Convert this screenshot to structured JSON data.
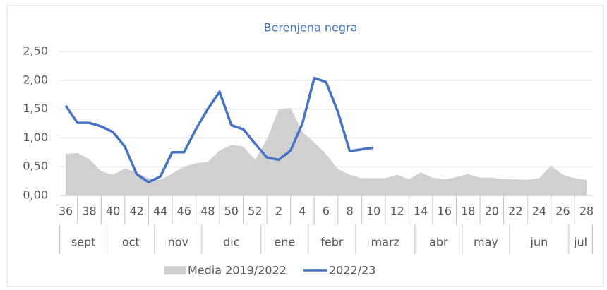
{
  "chart_data": {
    "type": "line",
    "title": "Berenjena negra",
    "categories": [
      "36",
      null,
      "38",
      null,
      "40",
      null,
      "42",
      null,
      "44",
      null,
      "46",
      null,
      "48",
      null,
      "50",
      null,
      "52",
      null,
      "2",
      null,
      "4",
      null,
      "6",
      null,
      "8",
      null,
      "10",
      null,
      "12",
      null,
      "14",
      null,
      "16",
      null,
      "18",
      null,
      "20",
      null,
      "22",
      null,
      "24",
      null,
      "26",
      null,
      "28"
    ],
    "months": [
      "sept",
      "oct",
      "nov",
      "dic",
      "ene",
      "febr",
      "marz",
      "abr",
      "may",
      "jun",
      "jul"
    ],
    "series": [
      {
        "name": "Media 2019/2022",
        "type": "area",
        "color": "#d0d0d0",
        "values": [
          0.72,
          0.74,
          0.63,
          0.42,
          0.36,
          0.47,
          0.4,
          0.3,
          0.27,
          0.38,
          0.5,
          0.56,
          0.58,
          0.78,
          0.88,
          0.85,
          0.62,
          0.97,
          1.5,
          1.52,
          1.1,
          0.92,
          0.72,
          0.46,
          0.36,
          0.3,
          0.3,
          0.3,
          0.36,
          0.28,
          0.4,
          0.31,
          0.28,
          0.32,
          0.37,
          0.31,
          0.31,
          0.28,
          0.28,
          0.27,
          0.3,
          0.52,
          0.36,
          0.3,
          0.27
        ]
      },
      {
        "name": "2022/23",
        "type": "line",
        "color": "#4472c4",
        "values": [
          1.56,
          1.26,
          1.26,
          1.2,
          1.1,
          0.85,
          0.37,
          0.23,
          0.33,
          0.75,
          0.75,
          1.15,
          1.5,
          1.8,
          1.22,
          1.15,
          0.9,
          0.66,
          0.62,
          0.78,
          1.25,
          2.04,
          1.97,
          1.45,
          0.77,
          0.8,
          0.83,
          null,
          null,
          null,
          null,
          null,
          null,
          null,
          null,
          null,
          null,
          null,
          null,
          null,
          null,
          null,
          null,
          null,
          null
        ]
      }
    ],
    "ylim": [
      0,
      2.5
    ],
    "yticks": [
      {
        "value": 0,
        "label": "0,00"
      },
      {
        "value": 0.5,
        "label": "0,50"
      },
      {
        "value": 1,
        "label": "1,00"
      },
      {
        "value": 1.5,
        "label": "1,50"
      },
      {
        "value": 2,
        "label": "2,00"
      },
      {
        "value": 2.5,
        "label": "2,50"
      }
    ],
    "grid": true,
    "legend": "bottom"
  }
}
